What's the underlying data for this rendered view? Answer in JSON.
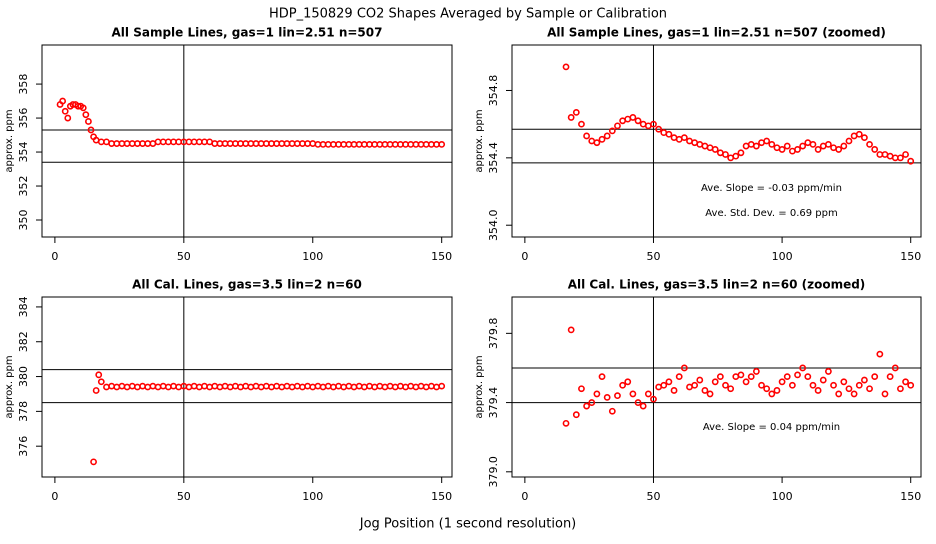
{
  "title": "HDP_150829  CO2 Shapes Averaged by Sample or Calibration",
  "xlabel": "Jog Position (1 second resolution)",
  "chart_data": [
    {
      "type": "scatter",
      "title": "All Sample Lines, gas=1 lin=2.51 n=507",
      "ylabel": "approx. ppm",
      "color": "#ff0000",
      "xlim": [
        -5,
        154
      ],
      "ylim": [
        349,
        360.3
      ],
      "xticks": [
        0,
        50,
        100,
        150
      ],
      "yticks": [
        350,
        352,
        354,
        356,
        358
      ],
      "hlines": [
        353.4,
        355.3
      ],
      "vlines": [
        50
      ],
      "x": [
        2,
        3,
        4,
        5,
        6,
        7,
        8,
        9,
        10,
        11,
        12,
        13,
        14,
        15,
        16,
        18,
        20,
        22,
        24,
        26,
        28,
        30,
        32,
        34,
        36,
        38,
        40,
        42,
        44,
        46,
        48,
        50,
        52,
        54,
        56,
        58,
        60,
        62,
        64,
        66,
        68,
        70,
        72,
        74,
        76,
        78,
        80,
        82,
        84,
        86,
        88,
        90,
        92,
        94,
        96,
        98,
        100,
        102,
        104,
        106,
        108,
        110,
        112,
        114,
        116,
        118,
        120,
        122,
        124,
        126,
        128,
        130,
        132,
        134,
        136,
        138,
        140,
        142,
        144,
        146,
        148,
        150
      ],
      "values": [
        356.8,
        357.0,
        356.4,
        356.0,
        356.7,
        356.8,
        356.8,
        356.7,
        356.7,
        356.6,
        356.2,
        355.8,
        355.3,
        354.9,
        354.7,
        354.6,
        354.6,
        354.5,
        354.5,
        354.5,
        354.5,
        354.5,
        354.5,
        354.5,
        354.5,
        354.5,
        354.6,
        354.6,
        354.6,
        354.6,
        354.6,
        354.6,
        354.6,
        354.6,
        354.6,
        354.6,
        354.6,
        354.5,
        354.5,
        354.5,
        354.5,
        354.5,
        354.5,
        354.5,
        354.5,
        354.5,
        354.5,
        354.5,
        354.5,
        354.5,
        354.5,
        354.5,
        354.5,
        354.5,
        354.5,
        354.5,
        354.5,
        354.45,
        354.45,
        354.45,
        354.45,
        354.45,
        354.45,
        354.45,
        354.45,
        354.45,
        354.45,
        354.45,
        354.45,
        354.45,
        354.45,
        354.45,
        354.45,
        354.45,
        354.45,
        354.45,
        354.45,
        354.45,
        354.45,
        354.45,
        354.45,
        354.45
      ]
    },
    {
      "type": "scatter",
      "title": "All Sample Lines, gas=1 lin=2.51 n=507 (zoomed)",
      "ylabel": "approx. ppm",
      "color": "#ff0000",
      "xlim": [
        -5,
        154
      ],
      "ylim": [
        353.93,
        355.07
      ],
      "xticks": [
        0,
        50,
        100,
        150
      ],
      "yticks": [
        {
          "value": 354.0,
          "label": "354.0"
        },
        {
          "value": 354.4,
          "label": "354.4"
        },
        {
          "value": 354.8,
          "label": "354.8"
        }
      ],
      "hlines": [
        354.37,
        354.57
      ],
      "vlines": [
        50
      ],
      "annotations": [
        "Ave. Slope =  -0.03  ppm/min",
        "Ave. Std. Dev. =  0.69  ppm"
      ],
      "x": [
        16,
        18,
        20,
        22,
        24,
        26,
        28,
        30,
        32,
        34,
        36,
        38,
        40,
        42,
        44,
        46,
        48,
        50,
        52,
        54,
        56,
        58,
        60,
        62,
        64,
        66,
        68,
        70,
        72,
        74,
        76,
        78,
        80,
        82,
        84,
        86,
        88,
        90,
        92,
        94,
        96,
        98,
        100,
        102,
        104,
        106,
        108,
        110,
        112,
        114,
        116,
        118,
        120,
        122,
        124,
        126,
        128,
        130,
        132,
        134,
        136,
        138,
        140,
        142,
        144,
        146,
        148,
        150
      ],
      "values": [
        354.94,
        354.64,
        354.67,
        354.6,
        354.53,
        354.5,
        354.49,
        354.51,
        354.53,
        354.56,
        354.59,
        354.62,
        354.63,
        354.64,
        354.62,
        354.6,
        354.59,
        354.6,
        354.57,
        354.55,
        354.54,
        354.52,
        354.51,
        354.52,
        354.5,
        354.49,
        354.48,
        354.47,
        354.46,
        354.45,
        354.43,
        354.42,
        354.4,
        354.41,
        354.43,
        354.47,
        354.48,
        354.47,
        354.49,
        354.5,
        354.48,
        354.46,
        354.45,
        354.47,
        354.44,
        354.45,
        354.47,
        354.49,
        354.48,
        354.45,
        354.47,
        354.48,
        354.46,
        354.45,
        354.47,
        354.5,
        354.53,
        354.54,
        354.52,
        354.48,
        354.45,
        354.42,
        354.42,
        354.41,
        354.4,
        354.4,
        354.42,
        354.38
      ]
    },
    {
      "type": "scatter",
      "title": "All Cal. Lines, gas=3.5 lin=2 n=60",
      "ylabel": "approx. ppm",
      "color": "#ff0000",
      "xlim": [
        -5,
        154
      ],
      "ylim": [
        374.23,
        384.57
      ],
      "xticks": [
        0,
        50,
        100,
        150
      ],
      "yticks": [
        376,
        378,
        380,
        382,
        384
      ],
      "hlines": [
        378.5,
        380.4
      ],
      "vlines": [
        50
      ],
      "x": [
        15,
        16,
        17,
        18,
        20,
        22,
        24,
        26,
        28,
        30,
        32,
        34,
        36,
        38,
        40,
        42,
        44,
        46,
        48,
        50,
        52,
        54,
        56,
        58,
        60,
        62,
        64,
        66,
        68,
        70,
        72,
        74,
        76,
        78,
        80,
        82,
        84,
        86,
        88,
        90,
        92,
        94,
        96,
        98,
        100,
        102,
        104,
        106,
        108,
        110,
        112,
        114,
        116,
        118,
        120,
        122,
        124,
        126,
        128,
        130,
        132,
        134,
        136,
        138,
        140,
        142,
        144,
        146,
        148,
        150
      ],
      "values": [
        375.1,
        379.2,
        380.1,
        379.7,
        379.4,
        379.45,
        379.4,
        379.45,
        379.4,
        379.45,
        379.4,
        379.45,
        379.4,
        379.45,
        379.4,
        379.45,
        379.4,
        379.45,
        379.4,
        379.45,
        379.4,
        379.45,
        379.4,
        379.45,
        379.4,
        379.45,
        379.4,
        379.45,
        379.4,
        379.45,
        379.4,
        379.45,
        379.4,
        379.45,
        379.4,
        379.45,
        379.4,
        379.45,
        379.4,
        379.45,
        379.4,
        379.45,
        379.4,
        379.45,
        379.4,
        379.45,
        379.4,
        379.45,
        379.4,
        379.45,
        379.4,
        379.45,
        379.4,
        379.45,
        379.4,
        379.45,
        379.4,
        379.45,
        379.4,
        379.45,
        379.4,
        379.45,
        379.4,
        379.45,
        379.4,
        379.45,
        379.4,
        379.45,
        379.4,
        379.45
      ]
    },
    {
      "type": "scatter",
      "title": "All Cal. Lines, gas=3.5 lin=2 n=60 (zoomed)",
      "ylabel": "approx. ppm",
      "color": "#ff0000",
      "xlim": [
        -5,
        154
      ],
      "ylim": [
        378.97,
        380.01
      ],
      "xticks": [
        0,
        50,
        100,
        150
      ],
      "yticks": [
        {
          "value": 379.0,
          "label": "379.0"
        },
        {
          "value": 379.4,
          "label": "379.4"
        },
        {
          "value": 379.8,
          "label": "379.8"
        }
      ],
      "hlines": [
        379.4,
        379.6
      ],
      "vlines": [
        50
      ],
      "annotations": [
        "Ave. Slope =  0.04  ppm/min"
      ],
      "x": [
        16,
        18,
        20,
        22,
        24,
        26,
        28,
        30,
        32,
        34,
        36,
        38,
        40,
        42,
        44,
        46,
        48,
        50,
        52,
        54,
        56,
        58,
        60,
        62,
        64,
        66,
        68,
        70,
        72,
        74,
        76,
        78,
        80,
        82,
        84,
        86,
        88,
        90,
        92,
        94,
        96,
        98,
        100,
        102,
        104,
        106,
        108,
        110,
        112,
        114,
        116,
        118,
        120,
        122,
        124,
        126,
        128,
        130,
        132,
        134,
        136,
        138,
        140,
        142,
        144,
        146,
        148,
        150
      ],
      "values": [
        379.28,
        379.82,
        379.33,
        379.48,
        379.38,
        379.4,
        379.45,
        379.55,
        379.43,
        379.35,
        379.44,
        379.5,
        379.52,
        379.45,
        379.4,
        379.38,
        379.45,
        379.42,
        379.49,
        379.5,
        379.52,
        379.47,
        379.55,
        379.6,
        379.49,
        379.5,
        379.53,
        379.47,
        379.45,
        379.52,
        379.55,
        379.5,
        379.48,
        379.55,
        379.56,
        379.52,
        379.55,
        379.58,
        379.5,
        379.48,
        379.45,
        379.47,
        379.52,
        379.55,
        379.5,
        379.56,
        379.6,
        379.55,
        379.5,
        379.47,
        379.53,
        379.58,
        379.5,
        379.45,
        379.52,
        379.48,
        379.45,
        379.5,
        379.53,
        379.48,
        379.55,
        379.68,
        379.45,
        379.55,
        379.6,
        379.48,
        379.52,
        379.5
      ]
    }
  ]
}
